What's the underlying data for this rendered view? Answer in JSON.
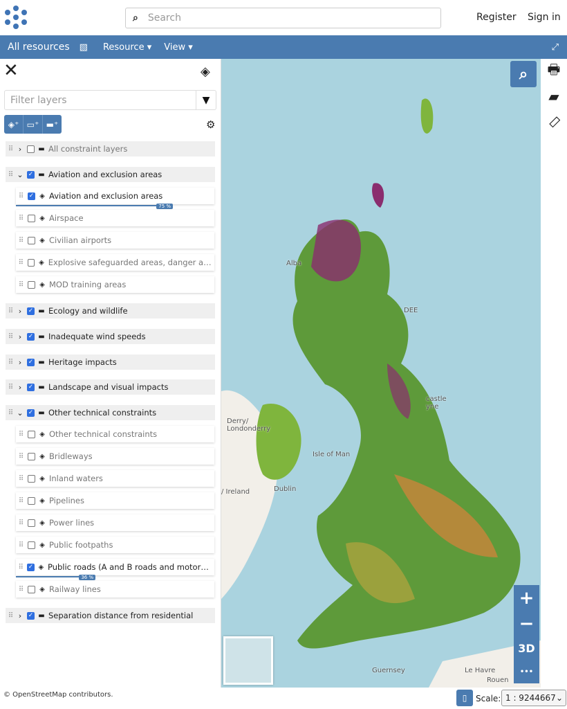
{
  "header": {
    "search_placeholder": "Search",
    "register": "Register",
    "signin": "Sign in"
  },
  "nav": {
    "all_resources": "All resources",
    "resource": "Resource",
    "view": "View"
  },
  "sidebar": {
    "filter_placeholder": "Filter layers",
    "items": [
      {
        "type": "group",
        "label": "All constraint layers",
        "checked": false,
        "expanded": false,
        "muted": true
      },
      {
        "type": "group",
        "label": "Aviation and exclusion areas",
        "checked": true,
        "expanded": true
      },
      {
        "type": "layer",
        "label": "Aviation and exclusion areas",
        "checked": true,
        "opacity": "75 %"
      },
      {
        "type": "layer",
        "label": "Airspace",
        "checked": false
      },
      {
        "type": "layer",
        "label": "Civilian airports",
        "checked": false
      },
      {
        "type": "layer",
        "label": "Explosive safeguarded areas, danger areas",
        "checked": false
      },
      {
        "type": "layer",
        "label": "MOD training areas",
        "checked": false
      },
      {
        "type": "group",
        "label": "Ecology and wildlife",
        "checked": true,
        "expanded": false
      },
      {
        "type": "group",
        "label": "Inadequate wind speeds",
        "checked": true,
        "expanded": false
      },
      {
        "type": "group",
        "label": "Heritage impacts",
        "checked": true,
        "expanded": false
      },
      {
        "type": "group",
        "label": "Landscape and visual impacts",
        "checked": true,
        "expanded": false
      },
      {
        "type": "group",
        "label": "Other technical constraints",
        "checked": true,
        "expanded": true
      },
      {
        "type": "layer",
        "label": "Other technical constraints",
        "checked": false
      },
      {
        "type": "layer",
        "label": "Bridleways",
        "checked": false
      },
      {
        "type": "layer",
        "label": "Inland waters",
        "checked": false
      },
      {
        "type": "layer",
        "label": "Pipelines",
        "checked": false
      },
      {
        "type": "layer",
        "label": "Power lines",
        "checked": false
      },
      {
        "type": "layer",
        "label": "Public footpaths",
        "checked": false
      },
      {
        "type": "layer",
        "label": "Public roads (A and B roads and motorways)",
        "checked": true,
        "opacity": "36 %"
      },
      {
        "type": "layer",
        "label": "Railway lines",
        "checked": false
      },
      {
        "type": "group",
        "label": "Separation distance from residential",
        "checked": true,
        "expanded": false
      }
    ]
  },
  "map": {
    "labels": [
      "Alba",
      "DEE",
      "Derry/\nLondonderry",
      "Isle of Man",
      "Dublin",
      "/ Ireland",
      "Guernsey",
      "Le Havre",
      "Rouen",
      "castle\nyne"
    ],
    "zoom_in": "+",
    "zoom_out": "−",
    "mode_3d": "3D",
    "more": "•••"
  },
  "footer": {
    "attribution": "© OpenStreetMap contributors.",
    "scale_label": "Scale:",
    "scale_value": "1 : 9244667"
  }
}
